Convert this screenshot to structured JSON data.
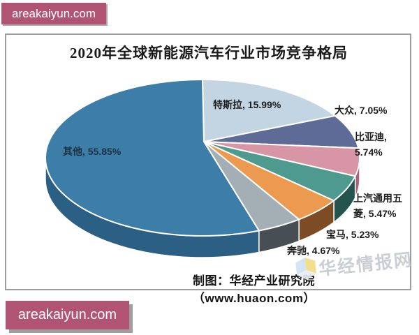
{
  "page": {
    "background": "#ffffff"
  },
  "overlay_banners": {
    "background_color": "#b15372",
    "text_color": "#ffffff",
    "top_text": "areakaiyun.com",
    "bottom_text": "areakaiyun.com"
  },
  "chart": {
    "title": "2020年全球新能源汽车行业市场竞争格局",
    "source_caption": "制图：华经产业研究院（www.huaon.com）",
    "watermark_text": "华经情报网",
    "frame_border_color": "#9c9c9c"
  },
  "chart_data": {
    "type": "pie",
    "is_3d": true,
    "title": "2020年全球新能源汽车行业市场竞争格局",
    "unit": "%",
    "start_angle_deg": -90,
    "direction": "clockwise",
    "legend": "none",
    "label_style": "category-and-percent",
    "slices": [
      {
        "id": "tesla",
        "label": "特斯拉",
        "value": 15.99,
        "display": "特斯拉, 15.99%",
        "color": "#c3d5e2",
        "side_color": "#8fa9bb",
        "label_color": "#1c1c1c"
      },
      {
        "id": "vw",
        "label": "大众",
        "value": 7.05,
        "display": "大众, 7.05%",
        "color": "#5e6b97",
        "side_color": "#3e4a6e",
        "label_color": "#1c1c1c"
      },
      {
        "id": "byd",
        "label": "比亚迪",
        "value": 5.74,
        "display": "比亚迪, 5.74%",
        "color": "#d795a5",
        "side_color": "#a7657a",
        "label_color": "#1c1c1c"
      },
      {
        "id": "wuling",
        "label": "上汽通用五菱",
        "value": 5.47,
        "display": "上汽通用五菱, 5.47%",
        "color": "#4f9a8e",
        "side_color": "#23544e",
        "label_color": "#1c1c1c"
      },
      {
        "id": "bmw",
        "label": "宝马",
        "value": 5.23,
        "display": "宝马, 5.23%",
        "color": "#eb9a4f",
        "side_color": "#7d4c24",
        "label_color": "#1c1c1c"
      },
      {
        "id": "benz",
        "label": "奔驰",
        "value": 4.67,
        "display": "奔驰, 4.67%",
        "color": "#a4aeb5",
        "side_color": "#474f55",
        "label_color": "#1c1c1c"
      },
      {
        "id": "others",
        "label": "其他",
        "value": 55.85,
        "display": "其他, 55.85%",
        "color": "#3d7ea8",
        "side_color": "#2b5f83",
        "label_color": "#1b3140"
      }
    ]
  }
}
